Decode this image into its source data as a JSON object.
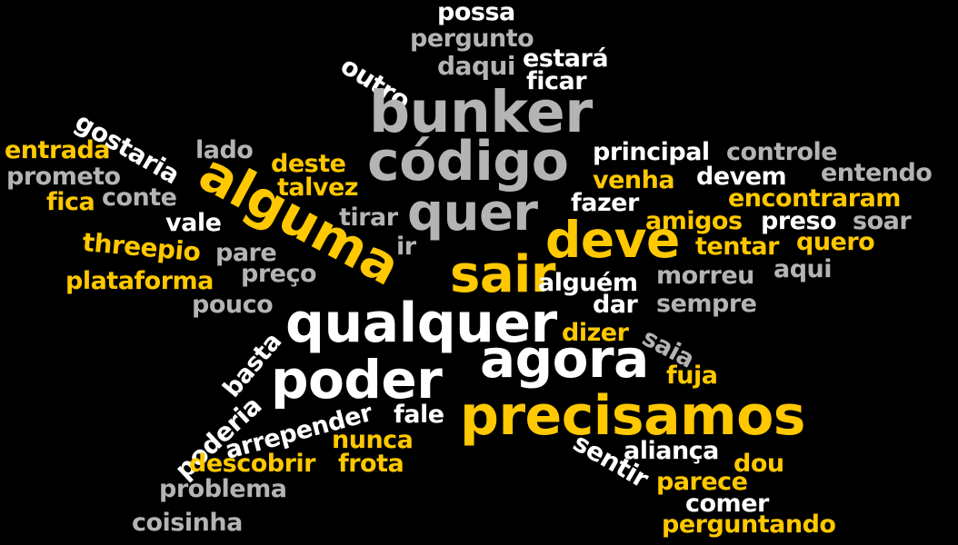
{
  "colors": {
    "background": "#000000",
    "gold": "#ffc800",
    "white": "#ffffff",
    "gray": "#b4b4b4"
  },
  "words": [
    {
      "id": "possa",
      "text": "possa",
      "color": "white"
    },
    {
      "id": "pergunto",
      "text": "pergunto",
      "color": "gray"
    },
    {
      "id": "outro",
      "text": "outro",
      "color": "white"
    },
    {
      "id": "daqui",
      "text": "daqui",
      "color": "gray"
    },
    {
      "id": "estara",
      "text": "estará",
      "color": "white"
    },
    {
      "id": "ficar",
      "text": "ficar",
      "color": "white"
    },
    {
      "id": "bunker",
      "text": "bunker",
      "color": "gray"
    },
    {
      "id": "gostaria",
      "text": "gostaria",
      "color": "white"
    },
    {
      "id": "entrada",
      "text": "entrada",
      "color": "gold"
    },
    {
      "id": "lado",
      "text": "lado",
      "color": "gray"
    },
    {
      "id": "codigo",
      "text": "código",
      "color": "gray"
    },
    {
      "id": "principal",
      "text": "principal",
      "color": "white"
    },
    {
      "id": "controle",
      "text": "controle",
      "color": "gray"
    },
    {
      "id": "prometo",
      "text": "prometo",
      "color": "gray"
    },
    {
      "id": "deste",
      "text": "deste",
      "color": "gold"
    },
    {
      "id": "entendo",
      "text": "entendo",
      "color": "gray"
    },
    {
      "id": "alguma",
      "text": "alguma",
      "color": "gold"
    },
    {
      "id": "venha",
      "text": "venha",
      "color": "gold"
    },
    {
      "id": "devem",
      "text": "devem",
      "color": "white"
    },
    {
      "id": "fica",
      "text": "fica",
      "color": "gold"
    },
    {
      "id": "conte",
      "text": "conte",
      "color": "gray"
    },
    {
      "id": "talvez",
      "text": "talvez",
      "color": "gold"
    },
    {
      "id": "fazer",
      "text": "fazer",
      "color": "white"
    },
    {
      "id": "encontraram",
      "text": "encontraram",
      "color": "gold"
    },
    {
      "id": "quer",
      "text": "quer",
      "color": "gray"
    },
    {
      "id": "vale",
      "text": "vale",
      "color": "white"
    },
    {
      "id": "tirar",
      "text": "tirar",
      "color": "gray"
    },
    {
      "id": "amigos",
      "text": "amigos",
      "color": "gold"
    },
    {
      "id": "preso",
      "text": "preso",
      "color": "white"
    },
    {
      "id": "soar",
      "text": "soar",
      "color": "gray"
    },
    {
      "id": "threepio",
      "text": "threepio",
      "color": "gold"
    },
    {
      "id": "deve",
      "text": "deve",
      "color": "gold"
    },
    {
      "id": "tentar",
      "text": "tentar",
      "color": "gold"
    },
    {
      "id": "quero",
      "text": "quero",
      "color": "gold"
    },
    {
      "id": "pare",
      "text": "pare",
      "color": "gray"
    },
    {
      "id": "ir",
      "text": "ir",
      "color": "gray"
    },
    {
      "id": "aqui",
      "text": "aqui",
      "color": "gray"
    },
    {
      "id": "preco",
      "text": "preço",
      "color": "gray"
    },
    {
      "id": "sair",
      "text": "sair",
      "color": "gold"
    },
    {
      "id": "morreu",
      "text": "morreu",
      "color": "gray"
    },
    {
      "id": "plataforma",
      "text": "plataforma",
      "color": "gold"
    },
    {
      "id": "alguem",
      "text": "alguém",
      "color": "white"
    },
    {
      "id": "pouco",
      "text": "pouco",
      "color": "gray"
    },
    {
      "id": "dar",
      "text": "dar",
      "color": "white"
    },
    {
      "id": "sempre",
      "text": "sempre",
      "color": "gray"
    },
    {
      "id": "qualquer",
      "text": "qualquer",
      "color": "white"
    },
    {
      "id": "dizer",
      "text": "dizer",
      "color": "gold"
    },
    {
      "id": "saia",
      "text": "saia",
      "color": "gray"
    },
    {
      "id": "basta",
      "text": "basta",
      "color": "white"
    },
    {
      "id": "agora",
      "text": "agora",
      "color": "white"
    },
    {
      "id": "fuja",
      "text": "fuja",
      "color": "gold"
    },
    {
      "id": "poder",
      "text": "poder",
      "color": "white"
    },
    {
      "id": "poderia",
      "text": "poderia",
      "color": "white"
    },
    {
      "id": "arrepender",
      "text": "arrepender",
      "color": "white"
    },
    {
      "id": "fale",
      "text": "fale",
      "color": "white"
    },
    {
      "id": "precisamos",
      "text": "precisamos",
      "color": "gold"
    },
    {
      "id": "nunca",
      "text": "nunca",
      "color": "gold"
    },
    {
      "id": "sentir",
      "text": "sentir",
      "color": "white"
    },
    {
      "id": "alianca",
      "text": "aliança",
      "color": "white"
    },
    {
      "id": "descobrir",
      "text": "descobrir",
      "color": "gold"
    },
    {
      "id": "frota",
      "text": "frota",
      "color": "gold"
    },
    {
      "id": "dou",
      "text": "dou",
      "color": "gold"
    },
    {
      "id": "parece",
      "text": "parece",
      "color": "gold"
    },
    {
      "id": "problema",
      "text": "problema",
      "color": "gray"
    },
    {
      "id": "comer",
      "text": "comer",
      "color": "white"
    },
    {
      "id": "coisinha",
      "text": "coisinha",
      "color": "gray"
    },
    {
      "id": "perguntando",
      "text": "perguntando",
      "color": "gold"
    }
  ]
}
